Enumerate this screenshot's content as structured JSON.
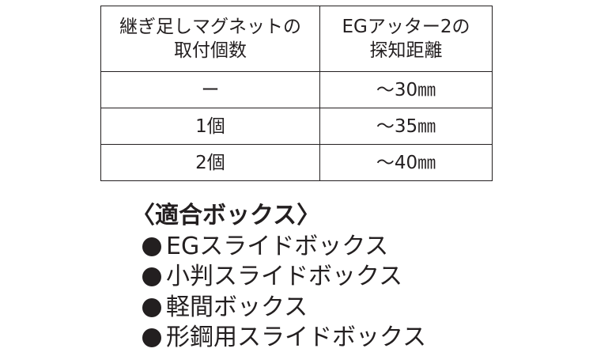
{
  "table": {
    "headers": [
      [
        "継ぎ足しマグネットの",
        "取付個数"
      ],
      [
        "EGアッター2の",
        "探知距離"
      ]
    ],
    "rows": [
      [
        "ー",
        "〜30㎜"
      ],
      [
        "1個",
        "〜35㎜"
      ],
      [
        "2個",
        "〜40㎜"
      ]
    ]
  },
  "compatible": {
    "heading": "〈適合ボックス〉",
    "items": [
      "EGスライドボックス",
      "小判スライドボックス",
      "軽間ボックス",
      "形鋼用スライドボックス"
    ]
  }
}
